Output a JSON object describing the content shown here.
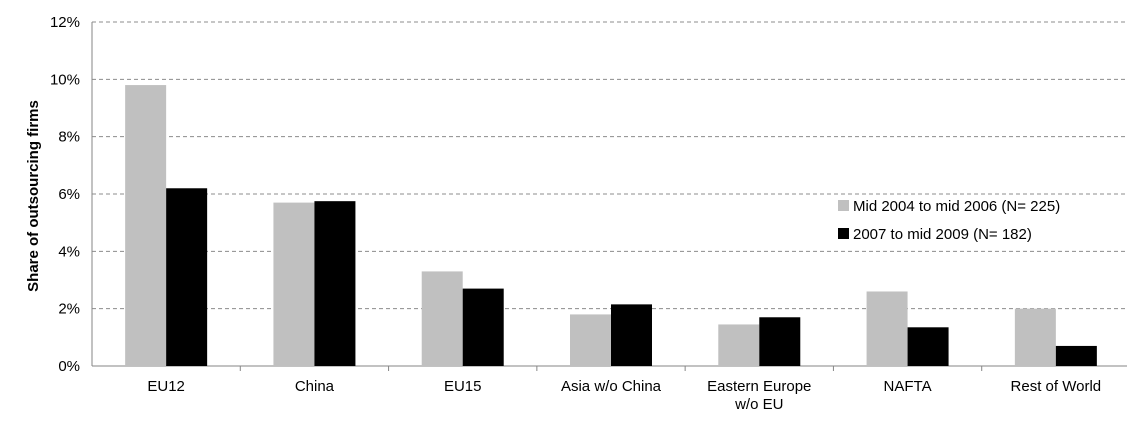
{
  "chart_data": {
    "type": "bar",
    "title": "",
    "xlabel": "",
    "ylabel": "Share of outsourcing firms",
    "ylim": [
      0,
      12
    ],
    "yticks": [
      "0%",
      "2%",
      "4%",
      "6%",
      "8%",
      "10%",
      "12%"
    ],
    "grid": true,
    "legend_position": "right",
    "categories": [
      [
        "EU12"
      ],
      [
        "China"
      ],
      [
        "EU15"
      ],
      [
        "Asia w/o China"
      ],
      [
        "Eastern Europe",
        "w/o EU"
      ],
      [
        "NAFTA"
      ],
      [
        "Rest of World"
      ]
    ],
    "series": [
      {
        "name": "Mid 2004 to mid 2006 (N= 225)",
        "color": "#c0c0c0",
        "values": [
          9.8,
          5.7,
          3.3,
          1.8,
          1.45,
          2.6,
          2.0
        ]
      },
      {
        "name": "2007 to mid 2009 (N= 182)",
        "color": "#000000",
        "values": [
          6.2,
          5.75,
          2.7,
          2.15,
          1.7,
          1.35,
          0.7
        ]
      }
    ]
  }
}
